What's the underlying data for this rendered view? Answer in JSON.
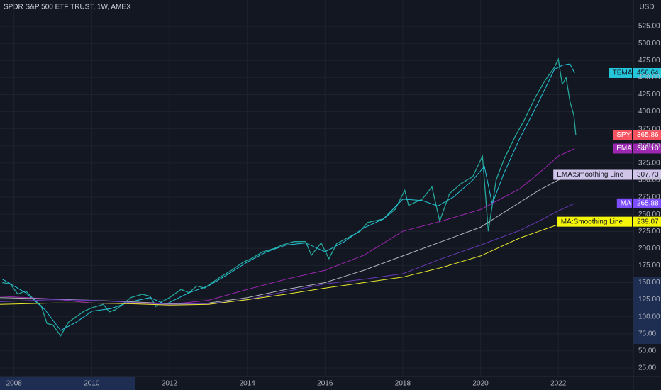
{
  "chart_data": {
    "type": "line",
    "title": "SPDR S&P 500 ETF TRUST, 1W, AMEX",
    "currency": "USD",
    "xlim": [
      2007.64,
      2023.93
    ],
    "xticks": [
      2008,
      2010,
      2012,
      2014,
      2016,
      2018,
      2020,
      2022
    ],
    "ylim": [
      12.5,
      563.5
    ],
    "yticks": [
      {
        "value": 25,
        "label": "25.00"
      },
      {
        "value": 50,
        "label": "50.00"
      },
      {
        "value": 75,
        "label": "75.00"
      },
      {
        "value": 100,
        "label": "100.00"
      },
      {
        "value": 125,
        "label": "125.00"
      },
      {
        "value": 150,
        "label": "150.00"
      },
      {
        "value": 175,
        "label": "175.00"
      },
      {
        "value": 200,
        "label": "200.00"
      },
      {
        "value": 225,
        "label": "225.00"
      },
      {
        "value": 250,
        "label": "250.00"
      },
      {
        "value": 275,
        "label": "275.00"
      },
      {
        "value": 300,
        "label": "300.00"
      },
      {
        "value": 325,
        "label": "325.00"
      },
      {
        "value": 350,
        "label": "350.00"
      },
      {
        "value": 375,
        "label": "375.00"
      },
      {
        "value": 400,
        "label": "400.00"
      },
      {
        "value": 425,
        "label": "425.00"
      },
      {
        "value": 450,
        "label": "450.00"
      },
      {
        "value": 475,
        "label": "475.00"
      },
      {
        "value": 500,
        "label": "500.00"
      },
      {
        "value": 525,
        "label": "525.00"
      }
    ],
    "grid": true,
    "series": [
      {
        "name": "SPY",
        "color": "#26a69a",
        "label_color": "#f7525f",
        "last_line": true,
        "x": [
          2007.7,
          2007.9,
          2008.1,
          2008.3,
          2008.5,
          2008.7,
          2008.85,
          2009.0,
          2009.2,
          2009.4,
          2009.6,
          2009.8,
          2010.0,
          2010.3,
          2010.45,
          2010.6,
          2010.8,
          2011.0,
          2011.3,
          2011.5,
          2011.65,
          2011.8,
          2012.0,
          2012.3,
          2012.5,
          2012.7,
          2012.9,
          2013.0,
          2013.3,
          2013.6,
          2013.9,
          2014.1,
          2014.4,
          2014.7,
          2014.9,
          2015.2,
          2015.5,
          2015.65,
          2015.9,
          2016.1,
          2016.3,
          2016.6,
          2016.9,
          2017.1,
          2017.5,
          2017.8,
          2018.05,
          2018.15,
          2018.5,
          2018.75,
          2018.95,
          2019.2,
          2019.5,
          2019.8,
          2020.05,
          2020.2,
          2020.4,
          2020.6,
          2020.9,
          2021.1,
          2021.4,
          2021.65,
          2021.9,
          2022.0,
          2022.1,
          2022.2,
          2022.3,
          2022.4,
          2022.45
        ],
        "values": [
          150,
          148,
          133,
          138,
          126,
          116,
          90,
          88,
          72,
          92,
          100,
          108,
          113,
          118,
          107,
          110,
          118,
          128,
          133,
          130,
          115,
          122,
          128,
          140,
          135,
          145,
          142,
          146,
          158,
          168,
          180,
          185,
          195,
          200,
          205,
          210,
          210,
          190,
          208,
          185,
          207,
          216,
          225,
          238,
          243,
          257,
          285,
          263,
          272,
          290,
          240,
          280,
          295,
          305,
          335,
          225,
          300,
          330,
          365,
          385,
          420,
          445,
          465,
          477,
          440,
          450,
          415,
          395,
          365.86
        ],
        "last": {
          "value": 365.86,
          "label": "365.86"
        }
      },
      {
        "name": "TEMA",
        "color": "#26c6da",
        "label_color": "#26c6da",
        "x": [
          2007.7,
          2008.3,
          2008.8,
          2009.2,
          2009.6,
          2010,
          2010.5,
          2011,
          2011.5,
          2011.9,
          2012.5,
          2013,
          2013.5,
          2014,
          2014.5,
          2015,
          2015.5,
          2016,
          2016.5,
          2017,
          2017.5,
          2018,
          2018.5,
          2018.9,
          2019.3,
          2019.8,
          2020.1,
          2020.3,
          2020.6,
          2021,
          2021.5,
          2021.9,
          2022.1,
          2022.3,
          2022.42
        ],
        "values": [
          155,
          135,
          110,
          80,
          92,
          108,
          112,
          122,
          128,
          118,
          135,
          145,
          162,
          180,
          195,
          205,
          208,
          195,
          210,
          230,
          243,
          272,
          270,
          262,
          275,
          300,
          320,
          265,
          310,
          360,
          415,
          462,
          468,
          470,
          456.64
        ],
        "last": {
          "value": 456.64,
          "label": "456.64"
        }
      },
      {
        "name": "EMA",
        "color": "#9c27b0",
        "label_color": "#9c27b0",
        "x": [
          2007.64,
          2009,
          2010,
          2011,
          2012,
          2013,
          2014,
          2015,
          2016,
          2017,
          2018,
          2019,
          2020,
          2021,
          2021.5,
          2022,
          2022.42
        ],
        "values": [
          130,
          126,
          120,
          119,
          118,
          124,
          140,
          155,
          168,
          190,
          225,
          240,
          257,
          287,
          310,
          335,
          346.1
        ],
        "last": {
          "value": 346.1,
          "label": "346.10"
        }
      },
      {
        "name": "EMA:Smoothing Line",
        "color": "#b2b5be",
        "label_color": "#d1c4e9",
        "x": [
          2007.64,
          2009,
          2010,
          2011,
          2012,
          2013,
          2014,
          2015,
          2016,
          2017,
          2018,
          2019,
          2020,
          2021,
          2021.5,
          2022,
          2022.42
        ],
        "values": [
          128,
          126,
          124,
          122,
          119,
          120,
          128,
          140,
          150,
          168,
          189,
          210,
          231,
          267,
          285,
          300,
          307.73
        ],
        "last": {
          "value": 307.73,
          "label": "307.73"
        }
      },
      {
        "name": "MA",
        "color": "#673ab7",
        "label_color": "#7c4dff",
        "x": [
          2007.64,
          2009,
          2010,
          2011,
          2012,
          2013,
          2014,
          2015,
          2016,
          2017,
          2018,
          2019,
          2020,
          2021,
          2021.5,
          2022,
          2022.42
        ],
        "values": [
          122,
          125,
          124,
          121,
          118,
          119,
          125,
          137,
          148,
          155,
          163,
          185,
          205,
          226,
          240,
          255,
          265.88
        ],
        "last": {
          "value": 265.88,
          "label": "265.88"
        }
      },
      {
        "name": "MA:Smoothing Line",
        "color": "#e8e82c",
        "label_color": "#f5f50a",
        "x": [
          2007.64,
          2009,
          2010,
          2011,
          2012,
          2013,
          2014,
          2015,
          2016,
          2017,
          2018,
          2019,
          2020,
          2021,
          2021.5,
          2022,
          2022.42
        ],
        "values": [
          118,
          120,
          120,
          119,
          117,
          118,
          125,
          133,
          142,
          150,
          158,
          172,
          189,
          215,
          225,
          235,
          239.07
        ],
        "last": {
          "value": 239.07,
          "label": "239.07"
        }
      }
    ]
  }
}
